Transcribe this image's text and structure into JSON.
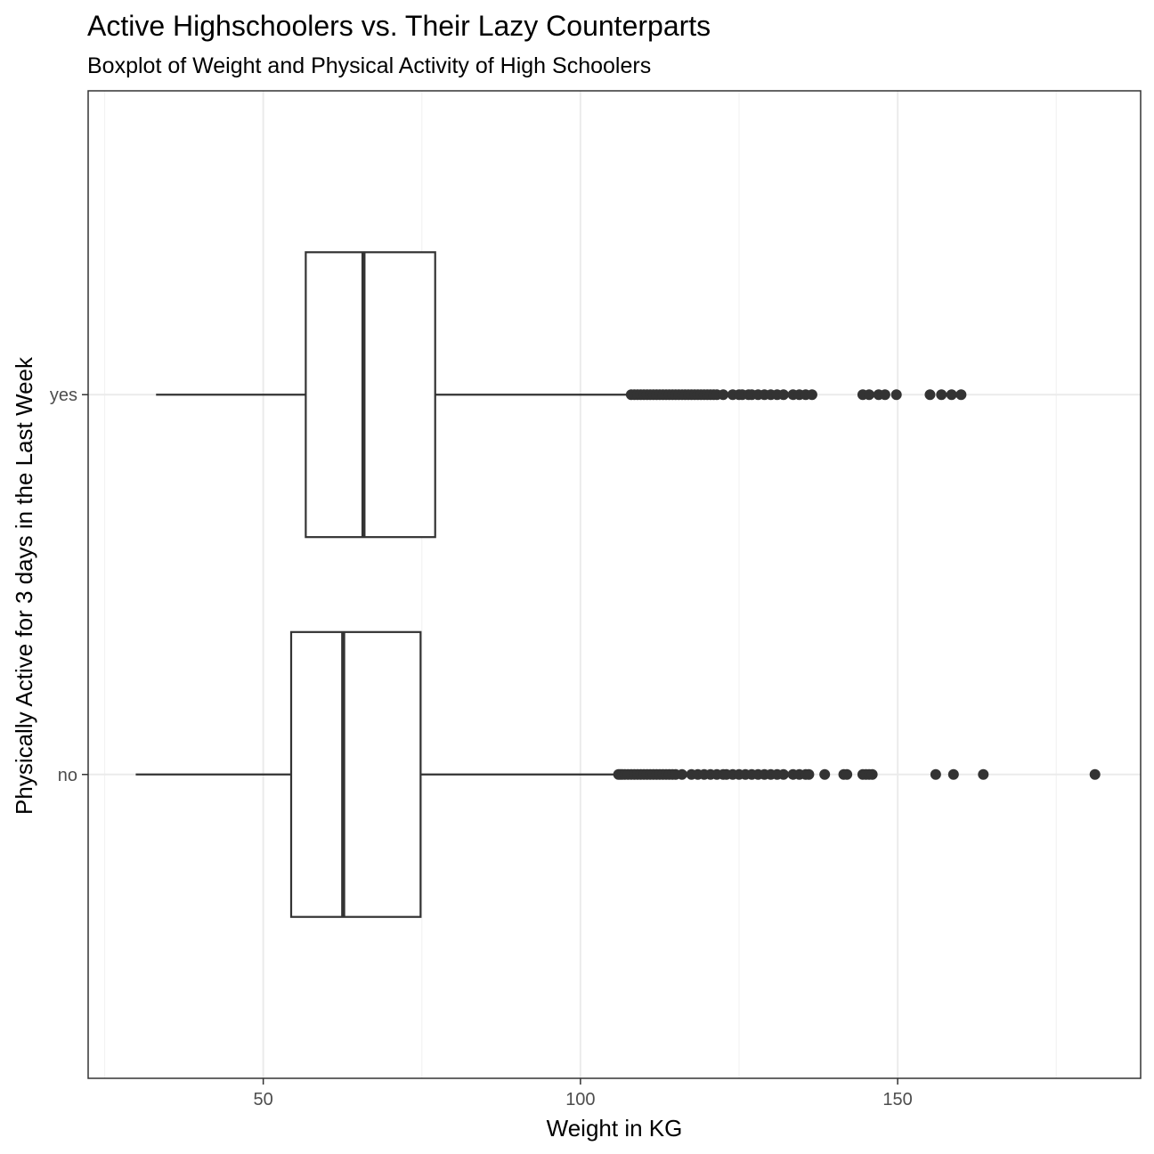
{
  "chart_data": {
    "type": "boxplot",
    "orientation": "horizontal",
    "title": "Active Highschoolers vs. Their Lazy Counterparts",
    "subtitle": "Boxplot of Weight and Physical Activity of High Schoolers",
    "xlabel": "Weight in KG",
    "ylabel": "Physically Active for 3 days in the Last Week",
    "xlim": [
      22.4,
      188.3
    ],
    "xticks": [
      50,
      100,
      150
    ],
    "xtick_labels": [
      "50",
      "100",
      "150"
    ],
    "grid": true,
    "colors": {
      "box_fill": "#ffffff",
      "box_stroke": "#333333",
      "outlier": "#333333",
      "grid_major": "#ebebeb",
      "grid_minor": "#f2f2f2",
      "panel_border": "#333333"
    },
    "categories": [
      "yes",
      "no"
    ],
    "series": [
      {
        "category": "yes",
        "whisker_low": 33.1,
        "q1": 56.7,
        "median": 65.8,
        "q3": 77.1,
        "whisker_high": 107.6,
        "outliers": [
          108.0,
          108.5,
          109.0,
          109.5,
          110.0,
          110.5,
          111.0,
          111.5,
          112.0,
          112.5,
          113.0,
          113.5,
          114.0,
          114.5,
          115.0,
          115.5,
          116.0,
          116.5,
          117.0,
          117.5,
          118.0,
          118.5,
          119.0,
          119.5,
          120.0,
          120.5,
          121.0,
          121.5,
          122.5,
          124.0,
          125.0,
          125.5,
          126.5,
          127.0,
          128.0,
          129.0,
          130.0,
          131.0,
          132.0,
          133.5,
          134.5,
          135.5,
          136.5,
          144.5,
          145.5,
          147.0,
          148.0,
          149.8,
          155.1,
          156.9,
          158.5,
          160.0
        ]
      },
      {
        "category": "no",
        "whisker_low": 29.9,
        "q1": 54.4,
        "median": 62.6,
        "q3": 74.8,
        "whisker_high": 105.5,
        "outliers": [
          106.0,
          106.3,
          106.6,
          107.0,
          107.5,
          108.0,
          108.5,
          109.0,
          109.5,
          110.0,
          110.5,
          111.0,
          111.5,
          112.0,
          112.5,
          113.0,
          113.5,
          114.0,
          114.5,
          115.0,
          116.0,
          117.5,
          118.5,
          119.5,
          120.5,
          121.5,
          122.5,
          123.0,
          124.0,
          125.0,
          126.0,
          127.0,
          128.0,
          129.0,
          130.0,
          131.0,
          132.0,
          133.5,
          134.5,
          135.5,
          136.0,
          138.5,
          141.5,
          142.0,
          144.5,
          145.0,
          145.5,
          146.0,
          156.0,
          158.8,
          163.5,
          181.1
        ]
      }
    ]
  }
}
